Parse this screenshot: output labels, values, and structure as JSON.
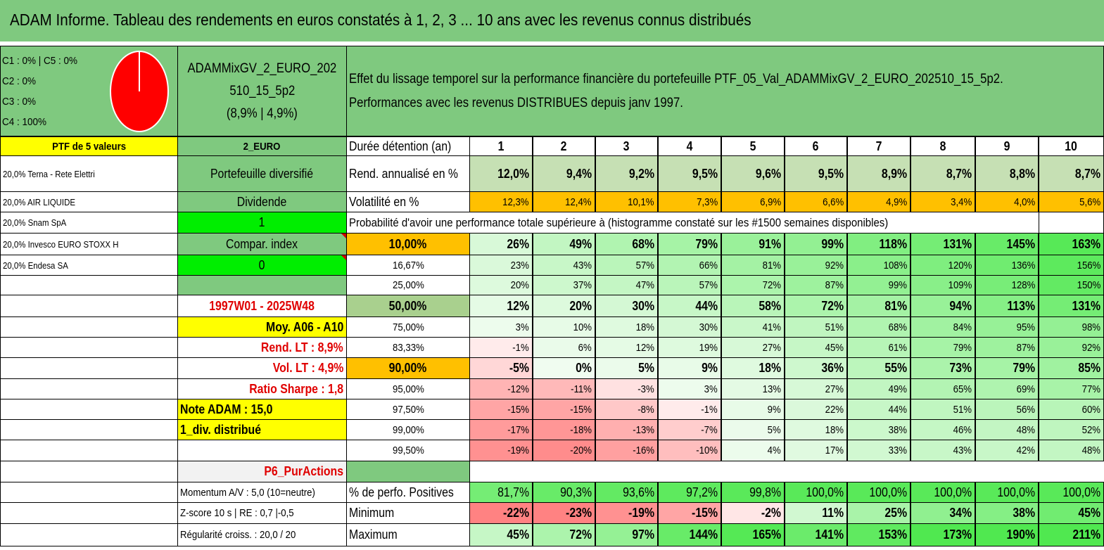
{
  "title": "ADAM Informe. Tableau des rendements en euros constatés à 1, 2, 3 ... 10 ans avec les revenus connus distribués",
  "legend": [
    "C1 : 0% | C5 : 0%",
    "C2 : 0%",
    "C3 : 0%",
    "C4 : 100%"
  ],
  "pie": {
    "c4_share": 100,
    "color": "#ff0000"
  },
  "fund": {
    "line1": "ADAMMixGV_2_EURO_202",
    "line2": "510_15_5p2",
    "line3": "(8,9% | 4,9%)"
  },
  "effect": {
    "line1": "Effet du lissage temporel sur la performance financière du portefeuille PTF_05_Val_ADAMMixGV_2_EURO_202510_15_5p2.",
    "line2": "Performances avec les revenus DISTRIBUES depuis janv 1997."
  },
  "left_col": {
    "header": "PTF de 5 valeurs",
    "holdings": [
      "20,0% Terna - Rete Elettri",
      "20,0% AIR LIQUIDE",
      "20,0% Snam SpA",
      "20,0% Invesco EURO STOXX H",
      "20,0% Endesa SA"
    ],
    "note": "Note ADAM : 15,0",
    "div": "1_div. distribué",
    "momentum": "Momentum A/V : 5,0 (10=neutre)",
    "zscore": "Z-score 10 s | RE : 0,7 |-0,5",
    "regularite": "Régularité croiss. : 20,0 / 20"
  },
  "mid_col": {
    "currency": "2_EURO",
    "type": "Portefeuille diversifié",
    "dividende": "Dividende",
    "one": "1",
    "compar": "Compar. index",
    "zero": "0",
    "period": "1997W01 - 2025W48",
    "moy": "Moy. A06 - A10",
    "rend_lt": "Rend. LT : 8,9%",
    "vol_lt": "Vol. LT : 4,9%",
    "sharpe": "Ratio Sharpe : 1,8",
    "p6": "P6_PurActions"
  },
  "table": {
    "years_label": "Durée détention (an)",
    "years": [
      "1",
      "2",
      "3",
      "4",
      "5",
      "6",
      "7",
      "8",
      "9",
      "10"
    ],
    "rend_label": "Rend. annualisé en %",
    "rend": [
      "12,0%",
      "9,4%",
      "9,2%",
      "9,5%",
      "9,6%",
      "9,5%",
      "8,9%",
      "8,7%",
      "8,8%",
      "8,7%"
    ],
    "vol_label": "Volatilité en %",
    "vol": [
      "12,3%",
      "12,4%",
      "10,1%",
      "7,3%",
      "6,9%",
      "6,6%",
      "4,9%",
      "3,4%",
      "4,0%",
      "5,6%"
    ],
    "prob_title": "Probabilité d'avoir une performance totale supérieure à (histogramme constaté sur les #1500 semaines disponibles)",
    "quantiles": [
      {
        "label": "10,00%",
        "values": [
          "26%",
          "49%",
          "68%",
          "79%",
          "91%",
          "99%",
          "118%",
          "131%",
          "145%",
          "163%"
        ]
      },
      {
        "label": "16,67%",
        "values": [
          "23%",
          "43%",
          "57%",
          "66%",
          "81%",
          "92%",
          "108%",
          "120%",
          "136%",
          "156%"
        ]
      },
      {
        "label": "25,00%",
        "values": [
          "20%",
          "37%",
          "47%",
          "57%",
          "72%",
          "87%",
          "99%",
          "109%",
          "128%",
          "150%"
        ]
      },
      {
        "label": "50,00%",
        "values": [
          "12%",
          "20%",
          "30%",
          "44%",
          "58%",
          "72%",
          "81%",
          "94%",
          "113%",
          "131%"
        ]
      },
      {
        "label": "75,00%",
        "values": [
          "3%",
          "10%",
          "18%",
          "30%",
          "41%",
          "51%",
          "68%",
          "84%",
          "95%",
          "98%"
        ]
      },
      {
        "label": "83,33%",
        "values": [
          "-1%",
          "6%",
          "12%",
          "19%",
          "27%",
          "45%",
          "61%",
          "79%",
          "87%",
          "92%"
        ]
      },
      {
        "label": "90,00%",
        "values": [
          "-5%",
          "0%",
          "5%",
          "9%",
          "18%",
          "36%",
          "55%",
          "73%",
          "79%",
          "85%"
        ]
      },
      {
        "label": "95,00%",
        "values": [
          "-12%",
          "-11%",
          "-3%",
          "3%",
          "13%",
          "27%",
          "49%",
          "65%",
          "69%",
          "77%"
        ]
      },
      {
        "label": "97,50%",
        "values": [
          "-15%",
          "-15%",
          "-8%",
          "-1%",
          "9%",
          "22%",
          "44%",
          "51%",
          "56%",
          "60%"
        ]
      },
      {
        "label": "99,00%",
        "values": [
          "-17%",
          "-18%",
          "-13%",
          "-7%",
          "5%",
          "18%",
          "38%",
          "46%",
          "48%",
          "52%"
        ]
      },
      {
        "label": "99,50%",
        "values": [
          "-19%",
          "-20%",
          "-16%",
          "-10%",
          "4%",
          "17%",
          "33%",
          "43%",
          "42%",
          "48%"
        ]
      }
    ],
    "pos_label": "% de perfo. Positives",
    "pos": [
      "81,7%",
      "90,3%",
      "93,6%",
      "97,2%",
      "99,8%",
      "100,0%",
      "100,0%",
      "100,0%",
      "100,0%",
      "100,0%"
    ],
    "min_label": "Minimum",
    "min": [
      "-22%",
      "-23%",
      "-19%",
      "-15%",
      "-2%",
      "11%",
      "25%",
      "34%",
      "38%",
      "45%"
    ],
    "max_label": "Maximum",
    "max": [
      "45%",
      "72%",
      "97%",
      "144%",
      "165%",
      "141%",
      "153%",
      "173%",
      "190%",
      "211%"
    ]
  },
  "colors": {
    "title_green": "#7fc97f",
    "mid_green": "#7fc97f",
    "yellow": "#ffff00",
    "bright_green": "#00ee00",
    "orange": "#ffc000",
    "rend_green": "#c6e0b4",
    "label_red": "#e00000"
  }
}
